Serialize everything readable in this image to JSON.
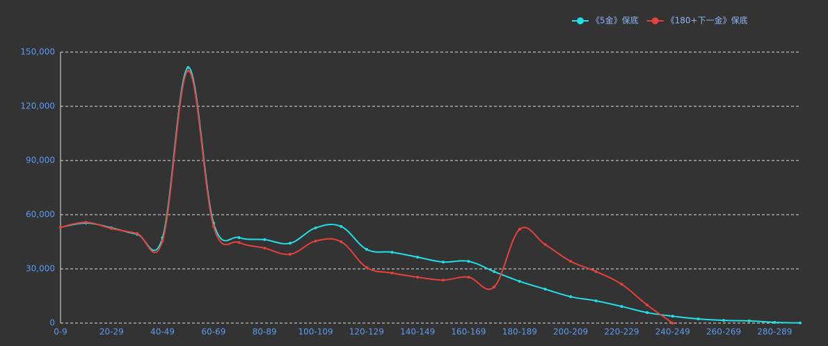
{
  "chart_data": {
    "type": "line",
    "categories": [
      "0-9",
      null,
      "20-29",
      null,
      "40-49",
      null,
      "60-69",
      null,
      "80-89",
      null,
      "100-109",
      null,
      "120-129",
      null,
      "140-149",
      null,
      "160-169",
      null,
      "180-189",
      null,
      "200-209",
      null,
      "220-229",
      null,
      "240-249",
      null,
      "260-269",
      null,
      "280-289",
      null
    ],
    "series": [
      {
        "name": "《5金》保底",
        "color": "#22e0e8",
        "values": [
          53000,
          55400,
          52700,
          49200,
          47300,
          141500,
          55400,
          47300,
          46200,
          44200,
          52700,
          53500,
          40800,
          39200,
          36500,
          33800,
          34200,
          28500,
          23100,
          18800,
          14600,
          12300,
          9200,
          5800,
          3800,
          2300,
          1500,
          1200,
          400,
          100
        ]
      },
      {
        "name": "《180+下一金》保底",
        "color": "#e8403a",
        "values": [
          53000,
          55800,
          52300,
          49600,
          45500,
          139600,
          53500,
          44600,
          41500,
          38100,
          45400,
          45000,
          30800,
          27700,
          25400,
          23800,
          25400,
          20000,
          51900,
          43500,
          34200,
          28500,
          21500,
          10000,
          0,
          null,
          null,
          null,
          null,
          null
        ]
      }
    ],
    "ylim": [
      0,
      150000
    ],
    "yticks": [
      {
        "value": 0,
        "label": "0"
      },
      {
        "value": 30000,
        "label": "30,000"
      },
      {
        "value": 60000,
        "label": "60,000"
      },
      {
        "value": 90000,
        "label": "90,000"
      },
      {
        "value": 120000,
        "label": "120,000"
      },
      {
        "value": 150000,
        "label": "150,000"
      }
    ],
    "grid": true,
    "legend": "top"
  }
}
